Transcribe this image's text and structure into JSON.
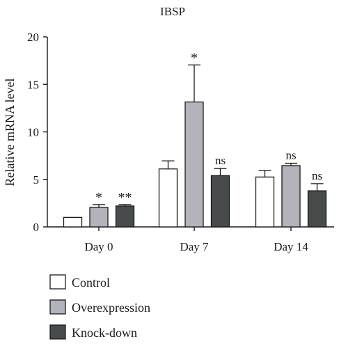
{
  "chart_data": {
    "type": "bar",
    "title": "IBSP",
    "ylabel": "Relative mRNA level",
    "xlabel": "",
    "ylim": [
      0,
      20
    ],
    "yticks": [
      0,
      5,
      10,
      15,
      20
    ],
    "categories": [
      "Day 0",
      "Day 7",
      "Day 14"
    ],
    "series": [
      {
        "name": "Control",
        "color": "#ffffff",
        "values": [
          1.0,
          6.1,
          5.25
        ],
        "errors": [
          0,
          0.85,
          0.7
        ],
        "significance": [
          "",
          "",
          ""
        ]
      },
      {
        "name": "Overexpression",
        "color": "#b3b3bb",
        "values": [
          2.05,
          13.15,
          6.45
        ],
        "errors": [
          0.3,
          3.9,
          0.25
        ],
        "significance": [
          "*",
          "*",
          "ns"
        ]
      },
      {
        "name": "Knock-down",
        "color": "#474b4b",
        "values": [
          2.2,
          5.4,
          3.8
        ],
        "errors": [
          0.15,
          0.75,
          0.75
        ],
        "significance": [
          "**",
          "ns",
          "ns"
        ]
      }
    ],
    "grid": false,
    "legend_position": "bottom-left"
  }
}
